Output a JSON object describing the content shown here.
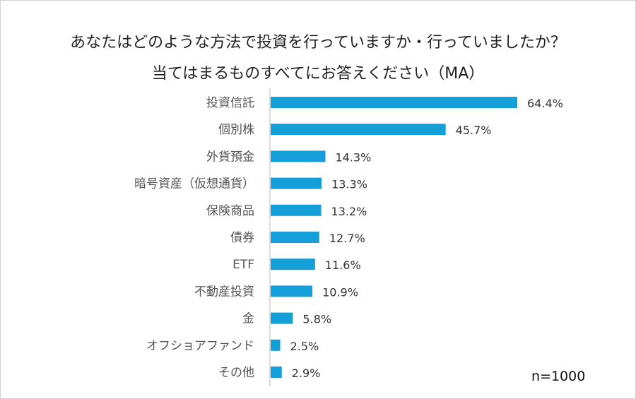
{
  "title_line1": "あなたはどのような方法で投資を行っていますか・行っていましたか？",
  "title_line2": "当てはまるものすべてにお答えください（MA）",
  "sample_size": "n=1000",
  "chart_data": {
    "type": "bar",
    "orientation": "horizontal",
    "categories": [
      "投資信託",
      "個別株",
      "外貨預金",
      "暗号資産（仮想通貨）",
      "保険商品",
      "債券",
      "ETF",
      "不動産投資",
      "金",
      "オフショアファンド",
      "その他"
    ],
    "values": [
      64.4,
      45.7,
      14.3,
      13.3,
      13.2,
      12.7,
      11.6,
      10.9,
      5.8,
      2.5,
      2.9
    ],
    "value_labels": [
      "64.4%",
      "45.7%",
      "14.3%",
      "13.3%",
      "13.2%",
      "12.7%",
      "11.6%",
      "10.9%",
      "5.8%",
      "2.5%",
      "2.9%"
    ],
    "unit": "%",
    "xlim": [
      0,
      70
    ],
    "grid": false,
    "bar_color": "#159fd8"
  }
}
